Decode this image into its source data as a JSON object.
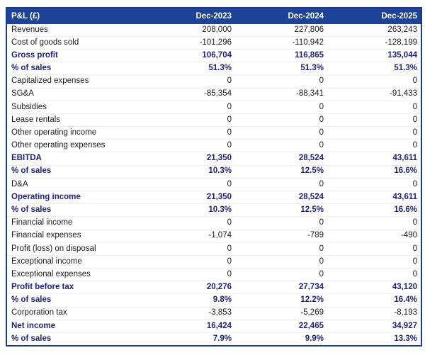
{
  "colors": {
    "header_bg": "#1d4397",
    "header_text": "#ffffff",
    "table_border": "#1b3a8c",
    "bold_row_text": "#201f7e",
    "regular_row_text": "#1c1c1c",
    "row_separator": "#ededed",
    "page_bg": "#fdfdfd"
  },
  "table": {
    "header": {
      "label": "P&L (£)",
      "columns": [
        "Dec-2023",
        "Dec-2024",
        "Dec-2025"
      ]
    },
    "rows": [
      {
        "label": "Revenues",
        "values": [
          "208,000",
          "227,806",
          "263,243"
        ],
        "bold": false
      },
      {
        "label": "Cost of goods sold",
        "values": [
          "-101,296",
          "-110,942",
          "-128,199"
        ],
        "bold": false
      },
      {
        "label": "Gross profit",
        "values": [
          "106,704",
          "116,865",
          "135,044"
        ],
        "bold": true
      },
      {
        "label": "% of sales",
        "values": [
          "51.3%",
          "51.3%",
          "51.3%"
        ],
        "bold": true
      },
      {
        "label": "Capitalized expenses",
        "values": [
          "0",
          "0",
          "0"
        ],
        "bold": false
      },
      {
        "label": "SG&A",
        "values": [
          "-85,354",
          "-88,341",
          "-91,433"
        ],
        "bold": false
      },
      {
        "label": "Subsidies",
        "values": [
          "0",
          "0",
          "0"
        ],
        "bold": false
      },
      {
        "label": "Lease rentals",
        "values": [
          "0",
          "0",
          "0"
        ],
        "bold": false
      },
      {
        "label": "Other operating income",
        "values": [
          "0",
          "0",
          "0"
        ],
        "bold": false
      },
      {
        "label": "Other operating expenses",
        "values": [
          "0",
          "0",
          "0"
        ],
        "bold": false
      },
      {
        "label": "EBITDA",
        "values": [
          "21,350",
          "28,524",
          "43,611"
        ],
        "bold": true
      },
      {
        "label": "% of sales",
        "values": [
          "10.3%",
          "12.5%",
          "16.6%"
        ],
        "bold": true
      },
      {
        "label": "D&A",
        "values": [
          "0",
          "0",
          "0"
        ],
        "bold": false
      },
      {
        "label": "Operating income",
        "values": [
          "21,350",
          "28,524",
          "43,611"
        ],
        "bold": true
      },
      {
        "label": "% of sales",
        "values": [
          "10.3%",
          "12.5%",
          "16.6%"
        ],
        "bold": true
      },
      {
        "label": "Financial income",
        "values": [
          "0",
          "0",
          "0"
        ],
        "bold": false
      },
      {
        "label": "Financial expenses",
        "values": [
          "-1,074",
          "-789",
          "-490"
        ],
        "bold": false
      },
      {
        "label": "Profit (loss) on disposal",
        "values": [
          "0",
          "0",
          "0"
        ],
        "bold": false
      },
      {
        "label": "Exceptional income",
        "values": [
          "0",
          "0",
          "0"
        ],
        "bold": false
      },
      {
        "label": "Exceptional expenses",
        "values": [
          "0",
          "0",
          "0"
        ],
        "bold": false
      },
      {
        "label": "Profit before tax",
        "values": [
          "20,276",
          "27,734",
          "43,120"
        ],
        "bold": true
      },
      {
        "label": "% of sales",
        "values": [
          "9.8%",
          "12.2%",
          "16.4%"
        ],
        "bold": true
      },
      {
        "label": "Corporation tax",
        "values": [
          "-3,853",
          "-5,269",
          "-8,193"
        ],
        "bold": false
      },
      {
        "label": "Net income",
        "values": [
          "16,424",
          "22,465",
          "34,927"
        ],
        "bold": true
      },
      {
        "label": "% of sales",
        "values": [
          "7.9%",
          "9.9%",
          "13.3%"
        ],
        "bold": true
      }
    ]
  },
  "chart_data": {
    "type": "table",
    "title": "P&L (£)",
    "columns": [
      "Dec-2023",
      "Dec-2024",
      "Dec-2025"
    ],
    "rows": [
      {
        "label": "Revenues",
        "values": [
          208000,
          227806,
          263243
        ]
      },
      {
        "label": "Cost of goods sold",
        "values": [
          -101296,
          -110942,
          -128199
        ]
      },
      {
        "label": "Gross profit",
        "values": [
          106704,
          116865,
          135044
        ]
      },
      {
        "label": "% of sales",
        "values": [
          "51.3%",
          "51.3%",
          "51.3%"
        ]
      },
      {
        "label": "Capitalized expenses",
        "values": [
          0,
          0,
          0
        ]
      },
      {
        "label": "SG&A",
        "values": [
          -85354,
          -88341,
          -91433
        ]
      },
      {
        "label": "Subsidies",
        "values": [
          0,
          0,
          0
        ]
      },
      {
        "label": "Lease rentals",
        "values": [
          0,
          0,
          0
        ]
      },
      {
        "label": "Other operating income",
        "values": [
          0,
          0,
          0
        ]
      },
      {
        "label": "Other operating expenses",
        "values": [
          0,
          0,
          0
        ]
      },
      {
        "label": "EBITDA",
        "values": [
          21350,
          28524,
          43611
        ]
      },
      {
        "label": "% of sales",
        "values": [
          "10.3%",
          "12.5%",
          "16.6%"
        ]
      },
      {
        "label": "D&A",
        "values": [
          0,
          0,
          0
        ]
      },
      {
        "label": "Operating income",
        "values": [
          21350,
          28524,
          43611
        ]
      },
      {
        "label": "% of sales",
        "values": [
          "10.3%",
          "12.5%",
          "16.6%"
        ]
      },
      {
        "label": "Financial income",
        "values": [
          0,
          0,
          0
        ]
      },
      {
        "label": "Financial expenses",
        "values": [
          -1074,
          -789,
          -490
        ]
      },
      {
        "label": "Profit (loss) on disposal",
        "values": [
          0,
          0,
          0
        ]
      },
      {
        "label": "Exceptional income",
        "values": [
          0,
          0,
          0
        ]
      },
      {
        "label": "Exceptional expenses",
        "values": [
          0,
          0,
          0
        ]
      },
      {
        "label": "Profit before tax",
        "values": [
          20276,
          27734,
          43120
        ]
      },
      {
        "label": "% of sales",
        "values": [
          "9.8%",
          "12.2%",
          "16.4%"
        ]
      },
      {
        "label": "Corporation tax",
        "values": [
          -3853,
          -5269,
          -8193
        ]
      },
      {
        "label": "Net income",
        "values": [
          16424,
          22465,
          34927
        ]
      },
      {
        "label": "% of sales",
        "values": [
          "7.9%",
          "9.9%",
          "13.3%"
        ]
      }
    ]
  }
}
